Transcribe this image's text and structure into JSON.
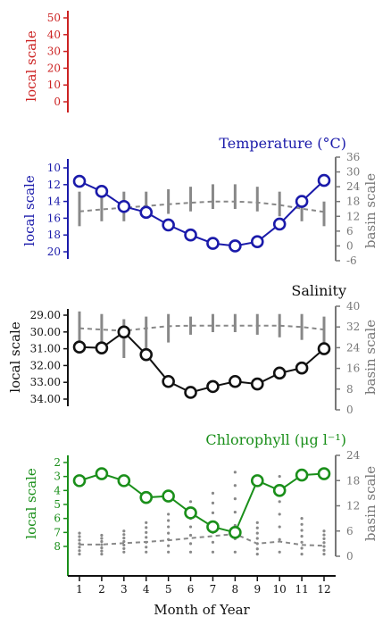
{
  "figure": {
    "xlabel": "Month of Year",
    "xticks": [
      "1",
      "2",
      "3",
      "4",
      "5",
      "6",
      "7",
      "8",
      "9",
      "10",
      "11",
      "12"
    ]
  },
  "chart_data": [
    {
      "type": "line",
      "id": "top",
      "title": "",
      "ylabel_left": "local scale",
      "ylim_left": [
        0,
        50
      ],
      "yticks_left": [
        "0",
        "10",
        "20",
        "30",
        "40",
        "50"
      ],
      "axis_color": "#cc2222",
      "series": []
    },
    {
      "type": "line",
      "id": "temperature",
      "title": "Temperature (°C)",
      "color": "#1a1aaa",
      "ylabel_left": "local scale",
      "ylabel_right": "basin scale",
      "ylim_left": [
        10,
        20
      ],
      "yticks_left": [
        "10",
        "12",
        "14",
        "16",
        "18",
        "20"
      ],
      "ylim_right": [
        -6,
        36
      ],
      "yticks_right": [
        "-6",
        "0",
        "6",
        "12",
        "18",
        "24",
        "30",
        "36"
      ],
      "x": [
        1,
        2,
        3,
        4,
        5,
        6,
        7,
        8,
        9,
        10,
        11,
        12
      ],
      "local_values": [
        11.6,
        12.8,
        14.6,
        15.3,
        16.8,
        18.0,
        19.0,
        19.3,
        18.8,
        16.7,
        14.0,
        11.5
      ],
      "basin_mean": [
        14.0,
        14.8,
        15.5,
        16.2,
        16.9,
        17.5,
        18.0,
        18.0,
        17.6,
        16.6,
        15.1,
        13.8
      ],
      "basin_ranges": [
        [
          8,
          22
        ],
        [
          10,
          23
        ],
        [
          10,
          22
        ],
        [
          12,
          22
        ],
        [
          13,
          23
        ],
        [
          14,
          24
        ],
        [
          15,
          25
        ],
        [
          15,
          25
        ],
        [
          14,
          24
        ],
        [
          12,
          22
        ],
        [
          10,
          20
        ],
        [
          8,
          18
        ]
      ],
      "color_basin": "#888888"
    },
    {
      "type": "line",
      "id": "salinity",
      "title": "Salinity",
      "color": "#111111",
      "ylabel_left": "local scale",
      "ylabel_right": "basin scale",
      "ylim_left": [
        29,
        34.4
      ],
      "yticks_left": [
        "29.00",
        "30.00",
        "31.00",
        "32.00",
        "33.00",
        "34.00"
      ],
      "ylim_right": [
        0,
        40
      ],
      "yticks_right": [
        "0",
        "8",
        "16",
        "24",
        "32",
        "40"
      ],
      "x": [
        1,
        2,
        3,
        4,
        5,
        6,
        7,
        8,
        9,
        10,
        11,
        12
      ],
      "local_values": [
        30.9,
        30.95,
        30.0,
        31.35,
        32.95,
        33.6,
        33.25,
        32.95,
        33.1,
        32.45,
        32.15,
        31.0
      ],
      "basin_mean": [
        31.5,
        31.0,
        30.5,
        31.5,
        32.3,
        32.5,
        32.5,
        32.5,
        32.5,
        32.5,
        32.0,
        31.0
      ],
      "basin_ranges": [
        [
          26,
          38
        ],
        [
          24,
          37
        ],
        [
          20,
          35
        ],
        [
          22,
          36
        ],
        [
          26,
          37
        ],
        [
          29,
          36
        ],
        [
          30,
          37
        ],
        [
          30,
          37
        ],
        [
          29,
          37
        ],
        [
          28,
          37
        ],
        [
          27,
          37
        ],
        [
          24,
          36
        ]
      ],
      "color_basin": "#888888"
    },
    {
      "type": "line",
      "id": "chlorophyll",
      "title": "Chlorophyll (μg l⁻¹)",
      "color": "#1a8f1a",
      "ylabel_left": "local scale",
      "ylabel_right": "basin scale",
      "ylim_left": [
        1.5,
        8.5
      ],
      "yticks_left": [
        "2",
        "3",
        "4",
        "5",
        "6",
        "7",
        "8"
      ],
      "ylim_right": [
        0,
        24
      ],
      "yticks_right": [
        "0",
        "6",
        "12",
        "18",
        "24"
      ],
      "x": [
        1,
        2,
        3,
        4,
        5,
        6,
        7,
        8,
        9,
        10,
        11,
        12
      ],
      "local_values": [
        3.3,
        2.8,
        3.3,
        4.5,
        4.4,
        5.6,
        6.6,
        7.0,
        3.3,
        4.0,
        2.9,
        2.8
      ],
      "basin_mean": [
        2.8,
        2.8,
        3.1,
        3.4,
        3.8,
        4.3,
        4.8,
        5.3,
        3.0,
        3.5,
        2.7,
        2.5
      ],
      "basin_ranges": [
        [
          0.5,
          5.5
        ],
        [
          0.5,
          5
        ],
        [
          1,
          6
        ],
        [
          1,
          8
        ],
        [
          1,
          10
        ],
        [
          1,
          13
        ],
        [
          1,
          15
        ],
        [
          1,
          20
        ],
        [
          0.5,
          8
        ],
        [
          1,
          19
        ],
        [
          0.5,
          9
        ],
        [
          0.5,
          6
        ]
      ],
      "color_basin": "#888888"
    }
  ]
}
